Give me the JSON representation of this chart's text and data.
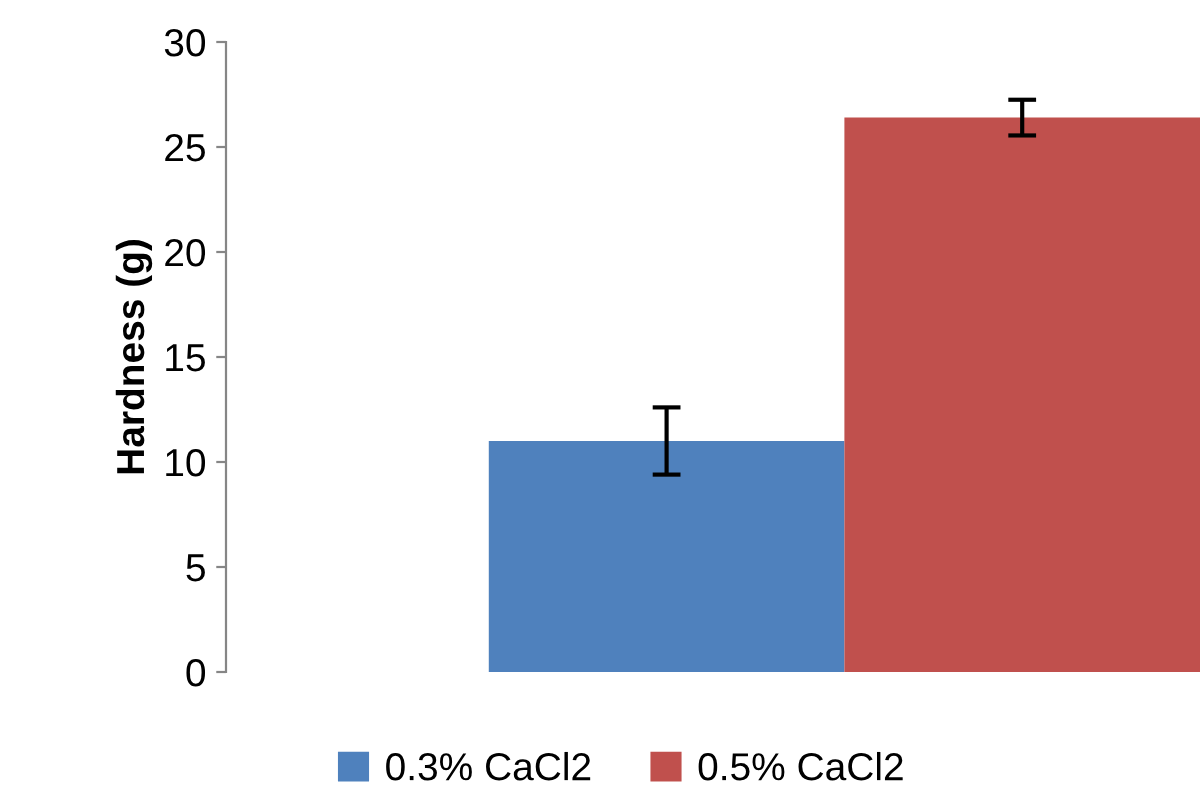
{
  "chart_data": {
    "type": "bar",
    "ylabel": "Hardness (g)",
    "categories": [
      null
    ],
    "series": [
      {
        "name": "0.3% CaCl2",
        "color": "#4f81bd",
        "values": [
          11.0
        ],
        "errors": [
          1.6
        ]
      },
      {
        "name": "0.5% CaCl2",
        "color": "#c0504d",
        "values": [
          26.4
        ],
        "errors": [
          0.85
        ]
      }
    ],
    "ylim": [
      0,
      30
    ],
    "yticks": [
      0,
      5,
      10,
      15,
      20,
      25,
      30
    ],
    "grid": false,
    "legend": "bottom"
  }
}
